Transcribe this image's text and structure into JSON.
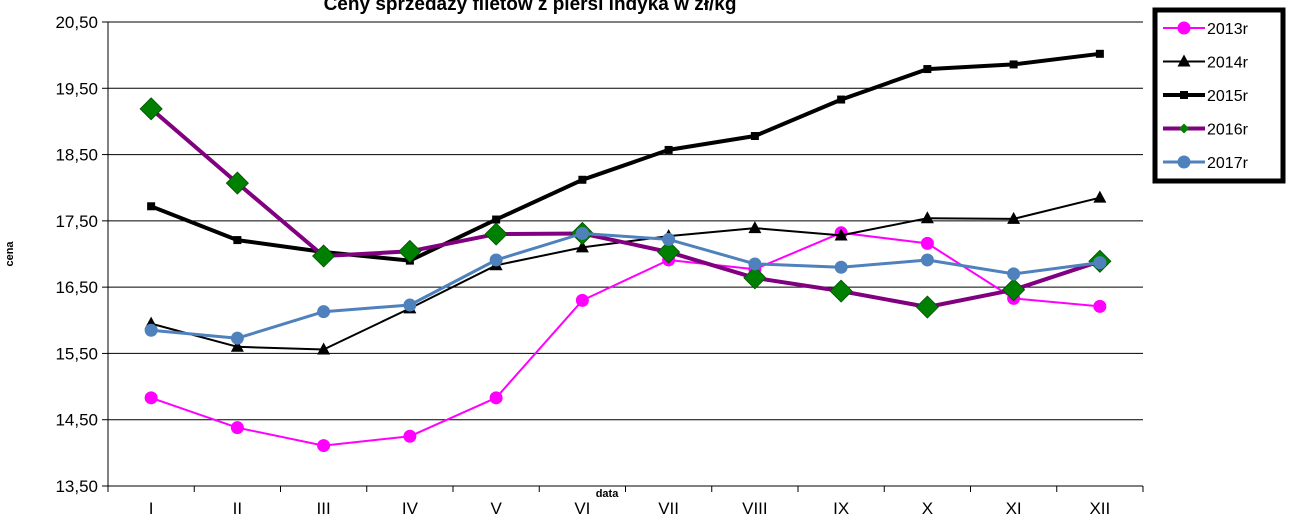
{
  "chart_data": {
    "type": "line",
    "title": "Ceny sprzedaży filetów z  piersi indyka w zł/kg",
    "xlabel": "data",
    "ylabel": "cena",
    "categories": [
      "I",
      "II",
      "III",
      "IV",
      "V",
      "VI",
      "VII",
      "VIII",
      "IX",
      "X",
      "XI",
      "XII"
    ],
    "y_ticks": [
      "13,50",
      "14,50",
      "15,50",
      "16,50",
      "17,50",
      "18,50",
      "19,50",
      "20,50"
    ],
    "ylim": [
      13.5,
      20.5
    ],
    "grid": "horizontal",
    "legend_position": "top-right",
    "series": [
      {
        "name": "2013r",
        "color": "#ff00ff",
        "marker": "circle",
        "values": [
          14.83,
          14.38,
          14.11,
          14.25,
          14.83,
          16.3,
          16.91,
          16.77,
          17.32,
          17.16,
          16.33,
          16.21
        ]
      },
      {
        "name": "2014r",
        "color": "#000000",
        "marker": "triangle",
        "values": [
          15.95,
          15.6,
          15.56,
          16.18,
          16.83,
          17.1,
          17.27,
          17.39,
          17.28,
          17.54,
          17.53,
          17.85
        ]
      },
      {
        "name": "2015r",
        "color": "#000000",
        "marker": "square",
        "values": [
          17.72,
          17.21,
          17.03,
          16.9,
          17.52,
          18.12,
          18.57,
          18.78,
          19.33,
          19.79,
          19.86,
          20.02
        ]
      },
      {
        "name": "2016r",
        "color": "#800080",
        "marker": "diamond",
        "marker_color": "#008000",
        "values": [
          19.19,
          18.07,
          16.97,
          17.04,
          17.3,
          17.31,
          17.03,
          16.64,
          16.44,
          16.2,
          16.46,
          16.89
        ]
      },
      {
        "name": "2017r",
        "color": "#4f81bd",
        "marker": "circle",
        "values": [
          15.85,
          15.73,
          16.13,
          16.23,
          16.91,
          17.31,
          17.22,
          16.85,
          16.8,
          16.91,
          16.7,
          16.87
        ]
      }
    ]
  }
}
